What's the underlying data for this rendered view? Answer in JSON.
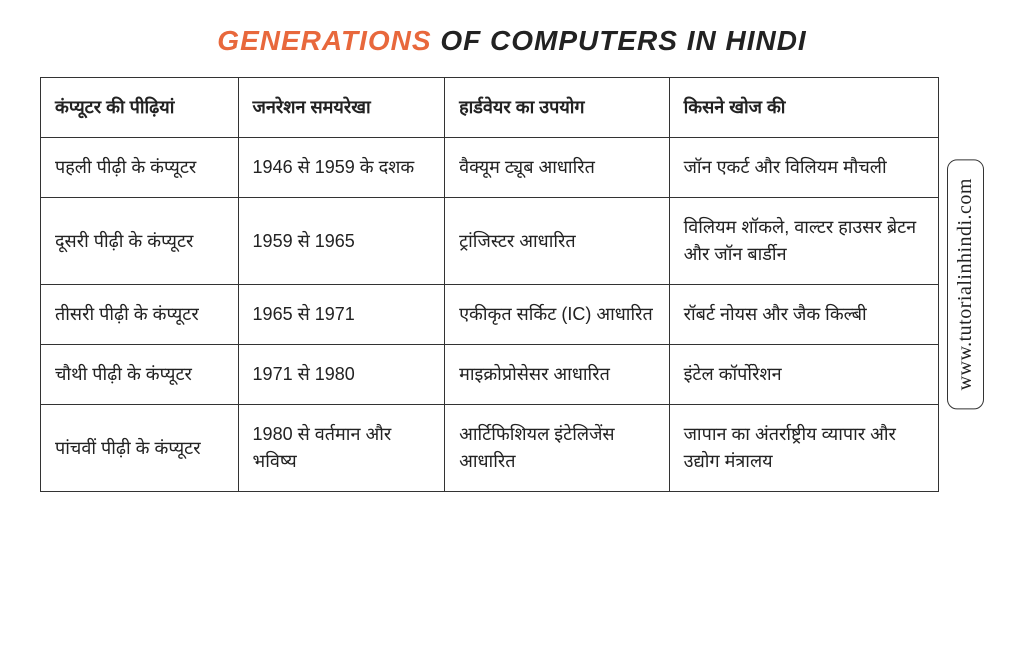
{
  "title": {
    "highlight": "GENERATIONS",
    "rest": " OF COMPUTERS IN HINDI"
  },
  "table": {
    "headers": {
      "col1": "कंप्यूटर की पीढ़ियां",
      "col2": "जनरेशन समयरेखा",
      "col3": "हार्डवेयर का उपयोग",
      "col4": "किसने खोज की"
    },
    "rows": [
      {
        "col1": "पहली पीढ़ी के कंप्यूटर",
        "col2": "1946 से 1959 के दशक",
        "col3": "वैक्यूम ट्यूब आधारित",
        "col4": "जॉन एकर्ट और विलियम मौचली"
      },
      {
        "col1": "दूसरी पीढ़ी के कंप्यूटर",
        "col2": "1959 से 1965",
        "col3": "ट्रांजिस्टर आधारित",
        "col4": "विलियम शॉकले, वाल्टर हाउसर ब्रेटन और जॉन बार्डीन"
      },
      {
        "col1": "तीसरी पीढ़ी के कंप्यूटर",
        "col2": "1965 से 1971",
        "col3": "एकीकृत सर्किट (IC) आधारित",
        "col4": "रॉबर्ट नोयस और जैक किल्बी"
      },
      {
        "col1": "चौथी पीढ़ी के कंप्यूटर",
        "col2": "1971 से 1980",
        "col3": "माइक्रोप्रोसेसर आधारित",
        "col4": "इंटेल कॉर्पोरेशन"
      },
      {
        "col1": "पांचवीं पीढ़ी के कंप्यूटर",
        "col2": "1980 से वर्तमान और भविष्य",
        "col3": "आर्टिफिशियल इंटेलिजेंस आधारित",
        "col4": "जापान का अंतर्राष्ट्रीय व्यापार और उद्योग मंत्रालय"
      }
    ]
  },
  "watermark": "www.tutorialinhindi.com",
  "colors": {
    "highlight": "#e8683c",
    "text": "#222222",
    "border": "#333333",
    "background": "#ffffff"
  }
}
